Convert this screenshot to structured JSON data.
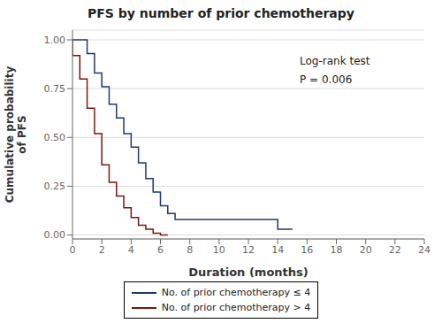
{
  "chart_data": {
    "type": "line",
    "title": "PFS by number of prior chemotherapy",
    "xlabel": "Duration (months)",
    "ylabel": "Cumulative probability\nof PFS",
    "xlim": [
      0,
      24
    ],
    "ylim": [
      -0.02,
      1.05
    ],
    "xticks": [
      0,
      2,
      4,
      6,
      8,
      10,
      12,
      14,
      16,
      18,
      20,
      22,
      24
    ],
    "yticks": [
      {
        "value": 0.0,
        "label": "0.00"
      },
      {
        "value": 0.25,
        "label": "0.25"
      },
      {
        "value": 0.5,
        "label": "0.50"
      },
      {
        "value": 0.75,
        "label": "0.75"
      },
      {
        "value": 1.0,
        "label": "1.00"
      }
    ],
    "grid": "y",
    "legend": "bottom",
    "series": [
      {
        "name": "No. of prior chemotherapy ≤ 4",
        "color": "#1F3870",
        "x": [
          0,
          1,
          1,
          1.5,
          1.5,
          2,
          2,
          2.5,
          2.5,
          3,
          3,
          3.5,
          3.5,
          4,
          4,
          4.5,
          4.5,
          5,
          5,
          5.5,
          5.5,
          6,
          6,
          6.5,
          6.5,
          7,
          7,
          14,
          14,
          15
        ],
        "values": [
          1.0,
          1.0,
          0.93,
          0.93,
          0.83,
          0.83,
          0.76,
          0.76,
          0.67,
          0.67,
          0.6,
          0.6,
          0.52,
          0.52,
          0.45,
          0.45,
          0.37,
          0.37,
          0.29,
          0.29,
          0.22,
          0.22,
          0.15,
          0.15,
          0.11,
          0.11,
          0.08,
          0.08,
          0.03,
          0.03
        ]
      },
      {
        "name": "No. of prior chemotherapy > 4",
        "color": "#7B1515",
        "x": [
          0,
          0,
          0.5,
          0.5,
          1,
          1,
          1.5,
          1.5,
          2,
          2,
          2.5,
          2.5,
          3,
          3,
          3.5,
          3.5,
          4,
          4,
          4.5,
          4.5,
          5,
          5,
          5.5,
          5.5,
          6,
          6,
          6.5
        ],
        "values": [
          1.0,
          0.92,
          0.92,
          0.8,
          0.8,
          0.65,
          0.65,
          0.52,
          0.52,
          0.36,
          0.36,
          0.27,
          0.27,
          0.2,
          0.2,
          0.14,
          0.14,
          0.09,
          0.09,
          0.05,
          0.05,
          0.03,
          0.03,
          0.01,
          0.01,
          0.0,
          0.0
        ]
      }
    ],
    "annotations": [
      {
        "text": "Log-rank test",
        "x": 15.5,
        "y": 0.92
      },
      {
        "text": "P = 0.006",
        "x": 15.5,
        "y": 0.825
      }
    ]
  }
}
